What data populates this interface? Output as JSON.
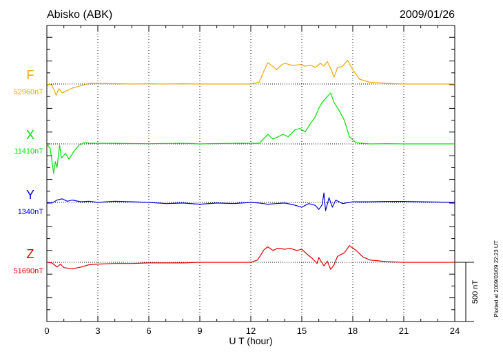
{
  "header": {
    "station": "Abisko (ABK)",
    "date": "2009/01/26"
  },
  "footer": {
    "plotted": "Plotted at 2009/03/09 22:23 UT"
  },
  "chart_data": {
    "type": "line",
    "title": "Abisko (ABK)",
    "date": "2009/01/26",
    "xlabel": "U T (hour)",
    "xlim": [
      0,
      24
    ],
    "xticks": [
      "0",
      "3",
      "6",
      "9",
      "12",
      "15",
      "18",
      "21",
      "24"
    ],
    "grid": "vertical dotted lines every 3 hours; dotted baseline per series",
    "scale_bar": {
      "label": "500 nT",
      "value_nT": 500
    },
    "series": [
      {
        "name": "F",
        "baseline_label": "52960nT",
        "baseline_nT": 52960,
        "color": "#f0a800",
        "points": [
          [
            0,
            0
          ],
          [
            0.3,
            -10
          ],
          [
            0.55,
            -95
          ],
          [
            0.7,
            -40
          ],
          [
            0.9,
            -75
          ],
          [
            1.2,
            -55
          ],
          [
            1.5,
            -35
          ],
          [
            2,
            -15
          ],
          [
            2.5,
            5
          ],
          [
            3,
            5
          ],
          [
            4,
            3
          ],
          [
            5,
            0
          ],
          [
            6,
            2
          ],
          [
            7,
            0
          ],
          [
            8,
            2
          ],
          [
            9,
            0
          ],
          [
            10,
            0
          ],
          [
            11,
            0
          ],
          [
            12,
            0
          ],
          [
            12.5,
            15
          ],
          [
            12.8,
            120
          ],
          [
            13,
            180
          ],
          [
            13.3,
            150
          ],
          [
            13.5,
            120
          ],
          [
            13.8,
            160
          ],
          [
            14,
            175
          ],
          [
            14.5,
            155
          ],
          [
            14.9,
            165
          ],
          [
            15.2,
            150
          ],
          [
            15.5,
            160
          ],
          [
            15.8,
            140
          ],
          [
            16.1,
            175
          ],
          [
            16.3,
            150
          ],
          [
            16.5,
            190
          ],
          [
            16.7,
            130
          ],
          [
            16.9,
            60
          ],
          [
            17.1,
            135
          ],
          [
            17.4,
            150
          ],
          [
            17.7,
            200
          ],
          [
            18,
            120
          ],
          [
            18.4,
            40
          ],
          [
            19,
            15
          ],
          [
            20,
            5
          ],
          [
            21,
            0
          ],
          [
            22,
            0
          ],
          [
            23,
            0
          ],
          [
            24,
            0
          ]
        ]
      },
      {
        "name": "X",
        "baseline_label": "11410nT",
        "baseline_nT": 11410,
        "color": "#00e000",
        "points": [
          [
            0,
            0
          ],
          [
            0.2,
            -40
          ],
          [
            0.4,
            -250
          ],
          [
            0.5,
            -150
          ],
          [
            0.6,
            -200
          ],
          [
            0.75,
            -10
          ],
          [
            0.85,
            -120
          ],
          [
            1.1,
            -80
          ],
          [
            1.3,
            -130
          ],
          [
            1.6,
            -60
          ],
          [
            1.9,
            -10
          ],
          [
            2.2,
            10
          ],
          [
            2.6,
            5
          ],
          [
            3,
            5
          ],
          [
            4,
            5
          ],
          [
            5,
            3
          ],
          [
            6,
            2
          ],
          [
            7,
            4
          ],
          [
            8,
            5
          ],
          [
            9,
            0
          ],
          [
            10,
            3
          ],
          [
            11,
            5
          ],
          [
            12,
            5
          ],
          [
            12.5,
            5
          ],
          [
            12.8,
            50
          ],
          [
            13,
            80
          ],
          [
            13.3,
            40
          ],
          [
            13.6,
            60
          ],
          [
            13.9,
            80
          ],
          [
            14.2,
            60
          ],
          [
            14.6,
            120
          ],
          [
            14.9,
            130
          ],
          [
            15.2,
            100
          ],
          [
            15.5,
            170
          ],
          [
            15.8,
            230
          ],
          [
            16,
            300
          ],
          [
            16.2,
            350
          ],
          [
            16.5,
            400
          ],
          [
            16.7,
            430
          ],
          [
            16.9,
            350
          ],
          [
            17.2,
            280
          ],
          [
            17.5,
            200
          ],
          [
            17.8,
            60
          ],
          [
            18.2,
            10
          ],
          [
            19,
            0
          ],
          [
            20,
            2
          ],
          [
            21,
            0
          ],
          [
            22,
            0
          ],
          [
            23,
            0
          ],
          [
            24,
            0
          ]
        ]
      },
      {
        "name": "Y",
        "baseline_label": "1340nT",
        "baseline_nT": 1340,
        "color": "#0000e0",
        "points": [
          [
            0,
            0
          ],
          [
            0.3,
            -5
          ],
          [
            0.6,
            20
          ],
          [
            0.9,
            30
          ],
          [
            1.2,
            10
          ],
          [
            1.5,
            20
          ],
          [
            2,
            5
          ],
          [
            2.5,
            10
          ],
          [
            3,
            0
          ],
          [
            3.5,
            5
          ],
          [
            4,
            10
          ],
          [
            5,
            5
          ],
          [
            6,
            0
          ],
          [
            7,
            -10
          ],
          [
            8,
            -5
          ],
          [
            9,
            -15
          ],
          [
            10,
            -5
          ],
          [
            11,
            -10
          ],
          [
            12,
            0
          ],
          [
            12.5,
            -5
          ],
          [
            13,
            -15
          ],
          [
            13.5,
            -10
          ],
          [
            14,
            -5
          ],
          [
            14.5,
            -20
          ],
          [
            15,
            -40
          ],
          [
            15.4,
            -10
          ],
          [
            15.8,
            -25
          ],
          [
            16,
            -60
          ],
          [
            16.2,
            -20
          ],
          [
            16.3,
            80
          ],
          [
            16.4,
            -70
          ],
          [
            16.6,
            40
          ],
          [
            16.8,
            -40
          ],
          [
            17,
            20
          ],
          [
            17.4,
            -10
          ],
          [
            18,
            5
          ],
          [
            19,
            5
          ],
          [
            20,
            8
          ],
          [
            21,
            8
          ],
          [
            22,
            5
          ],
          [
            23,
            3
          ],
          [
            24,
            0
          ]
        ]
      },
      {
        "name": "Z",
        "baseline_label": "51690nT",
        "baseline_nT": 51690,
        "color": "#e00000",
        "points": [
          [
            0,
            0
          ],
          [
            0.3,
            -5
          ],
          [
            0.6,
            -40
          ],
          [
            0.8,
            -15
          ],
          [
            1,
            -45
          ],
          [
            1.5,
            -55
          ],
          [
            2,
            -40
          ],
          [
            2.5,
            -20
          ],
          [
            3,
            -15
          ],
          [
            4,
            -10
          ],
          [
            5,
            -10
          ],
          [
            6,
            -5
          ],
          [
            7,
            -5
          ],
          [
            8,
            -5
          ],
          [
            9,
            0
          ],
          [
            10,
            0
          ],
          [
            11,
            0
          ],
          [
            12,
            0
          ],
          [
            12.4,
            20
          ],
          [
            12.8,
            110
          ],
          [
            13,
            130
          ],
          [
            13.3,
            100
          ],
          [
            13.6,
            120
          ],
          [
            14,
            110
          ],
          [
            14.3,
            120
          ],
          [
            14.7,
            100
          ],
          [
            15,
            110
          ],
          [
            15.3,
            70
          ],
          [
            15.6,
            35
          ],
          [
            15.9,
            -10
          ],
          [
            16,
            40
          ],
          [
            16.3,
            -30
          ],
          [
            16.5,
            10
          ],
          [
            16.7,
            -60
          ],
          [
            16.9,
            -20
          ],
          [
            17.1,
            50
          ],
          [
            17.5,
            80
          ],
          [
            17.8,
            140
          ],
          [
            18.2,
            100
          ],
          [
            18.6,
            45
          ],
          [
            19,
            20
          ],
          [
            20,
            5
          ],
          [
            21,
            0
          ],
          [
            22,
            0
          ],
          [
            23,
            0
          ],
          [
            24,
            0
          ]
        ]
      }
    ]
  }
}
